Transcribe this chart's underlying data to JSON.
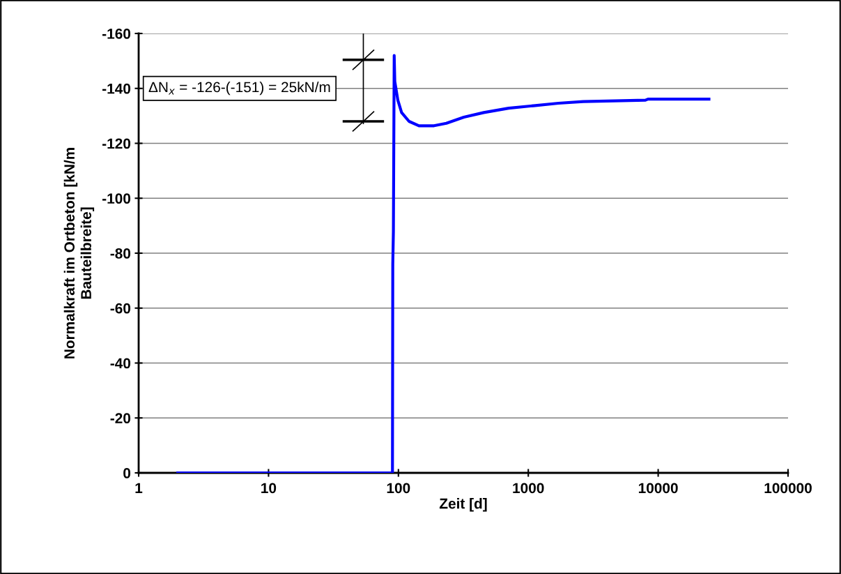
{
  "chart_data": {
    "type": "line",
    "xlabel": "Zeit [d]",
    "ylabel": "Normalkraft im Ortbeton [kN/m\nBauteilbreite]",
    "log": "x",
    "xlim": [
      1,
      100000
    ],
    "xticks": [
      1,
      10,
      100,
      1000,
      10000,
      100000
    ],
    "ylim": [
      0,
      -160
    ],
    "yticks": [
      0,
      -20,
      -40,
      -60,
      -80,
      -100,
      -120,
      -140,
      -160
    ],
    "grid": "y",
    "marker": "none",
    "line_style": "solid",
    "annotations": [
      "ΔN$_{x}$ = -126-(-151) = 25kN/m"
    ],
    "series": [
      {
        "color": "#0000ff",
        "x": [
          2,
          90,
          90.5,
          91.5,
          92.8,
          93.8,
          99,
          105.8,
          120.7,
          144,
          188,
          234,
          319,
          454,
          706,
          1097,
          1706,
          2649,
          7980,
          8350,
          24600
        ],
        "values": [
          0,
          0,
          -76,
          -88,
          -152,
          -142.5,
          -135.7,
          -131.2,
          -128,
          -126.4,
          -126.4,
          -127.3,
          -129.5,
          -131.2,
          -132.8,
          -133.7,
          -134.6,
          -135.2,
          -135.7,
          -136.1,
          -136.1
        ]
      }
    ]
  }
}
